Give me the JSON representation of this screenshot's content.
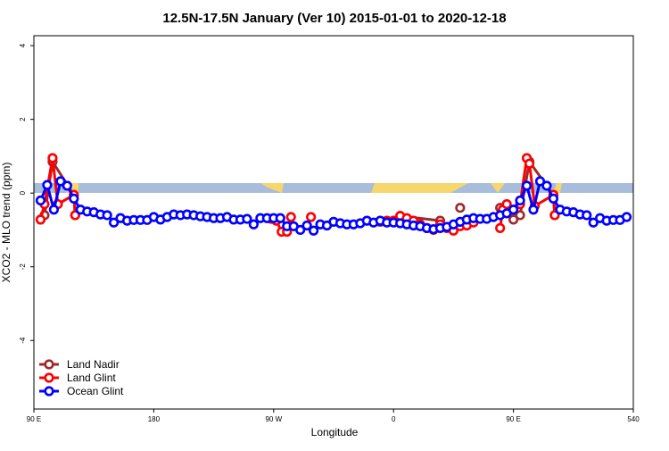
{
  "chart_data": {
    "type": "line",
    "title": "12.5N-17.5N January (Ver 10)   2015-01-01 to 2020-12-18",
    "x_label": "Longitude",
    "y_label": "XCO2 - MLO trend (ppm)",
    "xlim": [
      90,
      540
    ],
    "xticks": [
      {
        "value": 90,
        "label": "90 E"
      },
      180,
      {
        "value": 270,
        "label": "90 W"
      },
      {
        "value": 360,
        "label": "0"
      },
      {
        "value": 450,
        "label": "90 E"
      },
      540
    ],
    "ylim": [
      -5.86,
      4.27
    ],
    "yticks": [
      -4,
      -2,
      0,
      2,
      4
    ],
    "legend": "bottom-left",
    "series": [
      {
        "name": "Land Nadir",
        "color": "#9e2a2b",
        "x": [
          95,
          98,
          104,
          120,
          121,
          125,
          350,
          365,
          395,
          400,
          410,
          420,
          440,
          450,
          455,
          462,
          480,
          481
        ],
        "values": [
          -0.72,
          -0.6,
          0.85,
          -0.05,
          -0.6,
          null,
          -0.78,
          -0.62,
          -0.75,
          null,
          -0.4,
          null,
          -0.4,
          -0.72,
          -0.6,
          0.85,
          -0.05,
          -0.6
        ]
      },
      {
        "name": "Land Glint",
        "color": "#ff0000",
        "x": [
          95,
          98,
          104,
          108,
          120,
          121,
          125,
          268,
          272,
          276,
          280,
          283,
          290,
          298,
          300,
          355,
          360,
          365,
          370,
          375,
          380,
          385,
          390,
          395,
          400,
          405,
          410,
          415,
          420,
          430,
          440,
          442,
          445,
          450,
          455,
          460,
          462,
          466,
          480,
          481
        ],
        "values": [
          -0.72,
          -0.3,
          0.95,
          -0.3,
          -0.05,
          -0.6,
          null,
          -0.7,
          -0.75,
          -1.05,
          -1.05,
          -0.65,
          null,
          -0.65,
          null,
          -0.75,
          -0.75,
          -0.62,
          -0.68,
          -0.75,
          -0.85,
          -0.95,
          -1.0,
          -0.85,
          -0.95,
          -1.02,
          -0.9,
          -0.88,
          -0.8,
          null,
          -0.95,
          -0.45,
          -0.3,
          -0.45,
          -0.3,
          0.95,
          0.8,
          -0.35,
          -0.05,
          -0.6
        ]
      },
      {
        "name": "Ocean Glint",
        "color": "#0000ff",
        "x": [
          95,
          100,
          105,
          110,
          115,
          120,
          125,
          130,
          135,
          140,
          145,
          150,
          155,
          160,
          165,
          170,
          175,
          180,
          185,
          190,
          195,
          200,
          205,
          210,
          215,
          220,
          225,
          230,
          235,
          240,
          245,
          250,
          255,
          260,
          265,
          270,
          275,
          280,
          285,
          290,
          295,
          300,
          305,
          310,
          315,
          320,
          325,
          330,
          335,
          340,
          345,
          350,
          355,
          360,
          365,
          370,
          375,
          380,
          385,
          390,
          395,
          400,
          405,
          410,
          415,
          420,
          425,
          430,
          435,
          440,
          445,
          450,
          455,
          460,
          465,
          470,
          475,
          480,
          485,
          490,
          495,
          500,
          505,
          510,
          515,
          520,
          525,
          530,
          535
        ],
        "values": [
          -0.2,
          0.22,
          -0.45,
          0.32,
          0.2,
          -0.15,
          -0.45,
          -0.5,
          -0.52,
          -0.58,
          -0.6,
          -0.8,
          -0.68,
          -0.75,
          -0.73,
          -0.73,
          -0.73,
          -0.65,
          -0.72,
          -0.65,
          -0.58,
          -0.6,
          -0.58,
          -0.6,
          -0.63,
          -0.65,
          -0.68,
          -0.68,
          -0.65,
          -0.72,
          -0.72,
          -0.7,
          -0.85,
          -0.68,
          -0.68,
          -0.68,
          -0.68,
          -0.9,
          -0.9,
          -1.0,
          -0.88,
          -1.02,
          -0.85,
          -0.88,
          -0.78,
          -0.82,
          -0.85,
          -0.85,
          -0.82,
          -0.75,
          -0.8,
          -0.75,
          -0.8,
          -0.8,
          -0.82,
          -0.85,
          -0.88,
          -0.9,
          -0.95,
          -0.98,
          -0.95,
          -0.92,
          -0.85,
          -0.78,
          -0.72,
          -0.68,
          -0.7,
          -0.7,
          -0.65,
          -0.6,
          -0.55,
          -0.45,
          -0.2,
          0.2,
          -0.45,
          0.32,
          0.2,
          -0.15,
          -0.45,
          -0.5,
          -0.52,
          -0.58,
          -0.6,
          -0.8,
          -0.68,
          -0.75,
          -0.73,
          -0.73,
          -0.65
        ]
      }
    ]
  }
}
